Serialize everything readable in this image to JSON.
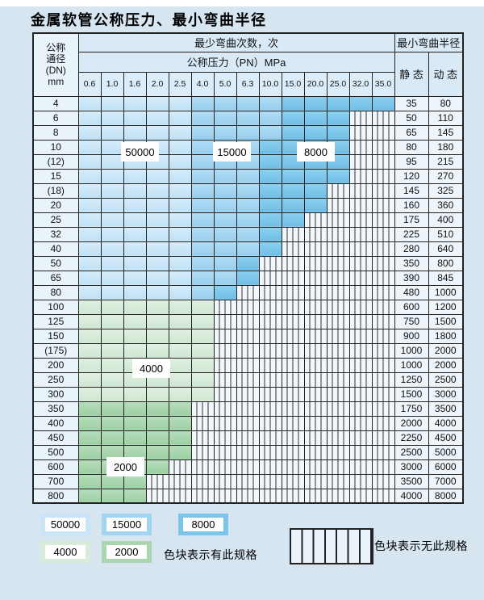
{
  "title": "金属软管公称压力、最小弯曲半径",
  "colors": {
    "zone_50000": "#c9e5f7",
    "zone_15000": "#a3d5f0",
    "zone_8000": "#7cc5ea",
    "zone_4000": "#d9ecdb",
    "zone_2000": "#a9d6ae",
    "no_spec_fill": "#f2f7fc",
    "grid_line": "#222222",
    "page_bg": "#d6e5ef"
  },
  "table": {
    "header": {
      "dn_label_lines": [
        "公称",
        "通径",
        "(DN)",
        "mm"
      ],
      "bend_cycles_label": "最少弯曲次数，次",
      "pressure_label": "公称压力（PN）MPa",
      "pressures": [
        "0.6",
        "1.0",
        "1.6",
        "2.0",
        "2.5",
        "4.0",
        "5.0",
        "6.3",
        "10.0",
        "15.0",
        "20.0",
        "25.0",
        "32.0",
        "35.0"
      ],
      "radius_label": "最小弯曲半径",
      "static_label": "静 态",
      "dynamic_label": "动 态"
    },
    "zone_classes": {
      "b1": "50000",
      "b2": "15000",
      "b3": "8000",
      "g1": "4000",
      "g2": "2000",
      "hx": "no-spec"
    },
    "rows": [
      {
        "dn": "4",
        "static": "35",
        "dynamic": "80",
        "spans": [
          {
            "cls": "b1",
            "to": 4
          },
          {
            "cls": "b2",
            "to": 8
          },
          {
            "cls": "b3",
            "to": 13
          }
        ]
      },
      {
        "dn": "6",
        "static": "50",
        "dynamic": "110",
        "spans": [
          {
            "cls": "b1",
            "to": 4
          },
          {
            "cls": "b2",
            "to": 8
          },
          {
            "cls": "b3",
            "to": 11
          }
        ]
      },
      {
        "dn": "8",
        "static": "65",
        "dynamic": "145",
        "spans": [
          {
            "cls": "b1",
            "to": 4
          },
          {
            "cls": "b2",
            "to": 8
          },
          {
            "cls": "b3",
            "to": 11
          }
        ]
      },
      {
        "dn": "10",
        "static": "80",
        "dynamic": "180",
        "spans": [
          {
            "cls": "b1",
            "to": 4
          },
          {
            "cls": "b2",
            "to": 7
          },
          {
            "cls": "b3",
            "to": 11
          }
        ]
      },
      {
        "dn": "(12)",
        "static": "95",
        "dynamic": "215",
        "spans": [
          {
            "cls": "b1",
            "to": 4
          },
          {
            "cls": "b2",
            "to": 7
          },
          {
            "cls": "b3",
            "to": 11
          }
        ]
      },
      {
        "dn": "15",
        "static": "120",
        "dynamic": "270",
        "spans": [
          {
            "cls": "b1",
            "to": 4
          },
          {
            "cls": "b2",
            "to": 7
          },
          {
            "cls": "b3",
            "to": 11
          }
        ]
      },
      {
        "dn": "(18)",
        "static": "145",
        "dynamic": "325",
        "spans": [
          {
            "cls": "b1",
            "to": 4
          },
          {
            "cls": "b2",
            "to": 7
          },
          {
            "cls": "b3",
            "to": 10
          }
        ]
      },
      {
        "dn": "20",
        "static": "160",
        "dynamic": "360",
        "spans": [
          {
            "cls": "b1",
            "to": 4
          },
          {
            "cls": "b2",
            "to": 7
          },
          {
            "cls": "b3",
            "to": 10
          }
        ]
      },
      {
        "dn": "25",
        "static": "175",
        "dynamic": "400",
        "spans": [
          {
            "cls": "b1",
            "to": 4
          },
          {
            "cls": "b2",
            "to": 7
          },
          {
            "cls": "b3",
            "to": 9
          }
        ]
      },
      {
        "dn": "32",
        "static": "225",
        "dynamic": "510",
        "spans": [
          {
            "cls": "b1",
            "to": 4
          },
          {
            "cls": "b2",
            "to": 7
          },
          {
            "cls": "b3",
            "to": 8
          }
        ]
      },
      {
        "dn": "40",
        "static": "280",
        "dynamic": "640",
        "spans": [
          {
            "cls": "b1",
            "to": 4
          },
          {
            "cls": "b2",
            "to": 7
          },
          {
            "cls": "b3",
            "to": 8
          }
        ]
      },
      {
        "dn": "50",
        "static": "350",
        "dynamic": "800",
        "spans": [
          {
            "cls": "b1",
            "to": 4
          },
          {
            "cls": "b2",
            "to": 6
          },
          {
            "cls": "b3",
            "to": 7
          }
        ]
      },
      {
        "dn": "65",
        "static": "390",
        "dynamic": "845",
        "spans": [
          {
            "cls": "b1",
            "to": 4
          },
          {
            "cls": "b2",
            "to": 6
          },
          {
            "cls": "b3",
            "to": 7
          }
        ]
      },
      {
        "dn": "80",
        "static": "480",
        "dynamic": "1000",
        "spans": [
          {
            "cls": "b1",
            "to": 4
          },
          {
            "cls": "b2",
            "to": 5
          },
          {
            "cls": "b3",
            "to": 6
          }
        ]
      },
      {
        "dn": "100",
        "static": "600",
        "dynamic": "1200",
        "spans": [
          {
            "cls": "g1",
            "to": 5
          }
        ]
      },
      {
        "dn": "125",
        "static": "750",
        "dynamic": "1500",
        "spans": [
          {
            "cls": "g1",
            "to": 5
          }
        ]
      },
      {
        "dn": "150",
        "static": "900",
        "dynamic": "1800",
        "spans": [
          {
            "cls": "g1",
            "to": 5
          }
        ]
      },
      {
        "dn": "(175)",
        "static": "1000",
        "dynamic": "2000",
        "spans": [
          {
            "cls": "g1",
            "to": 5
          }
        ]
      },
      {
        "dn": "200",
        "static": "1000",
        "dynamic": "2000",
        "spans": [
          {
            "cls": "g1",
            "to": 5
          }
        ]
      },
      {
        "dn": "250",
        "static": "1250",
        "dynamic": "2500",
        "spans": [
          {
            "cls": "g1",
            "to": 5
          }
        ]
      },
      {
        "dn": "300",
        "static": "1500",
        "dynamic": "3000",
        "spans": [
          {
            "cls": "g1",
            "to": 5
          }
        ]
      },
      {
        "dn": "350",
        "static": "1750",
        "dynamic": "3500",
        "spans": [
          {
            "cls": "g2",
            "to": 4
          }
        ]
      },
      {
        "dn": "400",
        "static": "2000",
        "dynamic": "4000",
        "spans": [
          {
            "cls": "g2",
            "to": 4
          }
        ]
      },
      {
        "dn": "450",
        "static": "2250",
        "dynamic": "4500",
        "spans": [
          {
            "cls": "g2",
            "to": 4
          }
        ]
      },
      {
        "dn": "500",
        "static": "2500",
        "dynamic": "5000",
        "spans": [
          {
            "cls": "g2",
            "to": 4
          }
        ]
      },
      {
        "dn": "600",
        "static": "3000",
        "dynamic": "6000",
        "spans": [
          {
            "cls": "g2",
            "to": 3
          }
        ]
      },
      {
        "dn": "700",
        "static": "3500",
        "dynamic": "7000",
        "spans": [
          {
            "cls": "g2",
            "to": 2
          }
        ]
      },
      {
        "dn": "800",
        "static": "4000",
        "dynamic": "8000",
        "spans": [
          {
            "cls": "g2",
            "to": 2
          }
        ]
      }
    ]
  },
  "overlays": [
    {
      "label": "50000"
    },
    {
      "label": "15000"
    },
    {
      "label": "8000"
    },
    {
      "label": "4000"
    },
    {
      "label": "2000"
    }
  ],
  "legend": {
    "swatches": [
      {
        "label": "50000",
        "color": "#c9e5f7"
      },
      {
        "label": "15000",
        "color": "#a3d5f0"
      },
      {
        "label": "8000",
        "color": "#7cc5ea"
      },
      {
        "label": "4000",
        "color": "#d9ecdb"
      },
      {
        "label": "2000",
        "color": "#a9d6ae"
      }
    ],
    "has_spec_label": "色块表示有此规格",
    "no_spec_label": "色块表示无此规格"
  }
}
